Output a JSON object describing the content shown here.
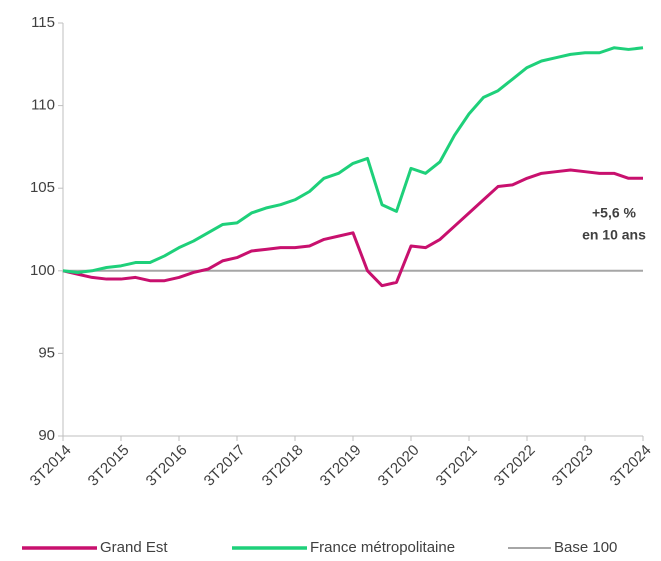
{
  "chart_data": {
    "type": "line",
    "categories": [
      "3T2014",
      null,
      null,
      null,
      "3T2015",
      null,
      null,
      null,
      "3T2016",
      null,
      null,
      null,
      "3T2017",
      null,
      null,
      null,
      "3T2018",
      null,
      null,
      null,
      "3T2019",
      null,
      null,
      null,
      "3T2020",
      null,
      null,
      null,
      "3T2021",
      null,
      null,
      null,
      "3T2022",
      null,
      null,
      null,
      "3T2023",
      null,
      null,
      null,
      "3T2024"
    ],
    "series": [
      {
        "name": "Grand Est",
        "color": "#c8106e",
        "values": [
          100.0,
          99.8,
          99.6,
          99.5,
          99.5,
          99.6,
          99.4,
          99.4,
          99.6,
          99.9,
          100.1,
          100.6,
          100.8,
          101.2,
          101.3,
          101.4,
          101.4,
          101.5,
          101.9,
          102.1,
          102.3,
          100.0,
          99.1,
          99.3,
          101.5,
          101.4,
          101.9,
          102.7,
          103.5,
          104.3,
          105.1,
          105.2,
          105.6,
          105.9,
          106.0,
          106.1,
          106.0,
          105.9,
          105.9,
          105.6,
          105.6
        ]
      },
      {
        "name": "France métropolitaine",
        "color": "#1ed07a",
        "values": [
          100.0,
          99.9,
          100.0,
          100.2,
          100.3,
          100.5,
          100.5,
          100.9,
          101.4,
          101.8,
          102.3,
          102.8,
          102.9,
          103.5,
          103.8,
          104.0,
          104.3,
          104.8,
          105.6,
          105.9,
          106.5,
          106.8,
          104.0,
          103.6,
          106.2,
          105.9,
          106.6,
          108.2,
          109.5,
          110.5,
          110.9,
          111.6,
          112.3,
          112.7,
          112.9,
          113.1,
          113.2,
          113.2,
          113.5,
          113.4,
          113.5
        ]
      },
      {
        "name": "Base 100",
        "color": "#a6a6a6",
        "values": [
          100,
          100,
          100,
          100,
          100,
          100,
          100,
          100,
          100,
          100,
          100,
          100,
          100,
          100,
          100,
          100,
          100,
          100,
          100,
          100,
          100,
          100,
          100,
          100,
          100,
          100,
          100,
          100,
          100,
          100,
          100,
          100,
          100,
          100,
          100,
          100,
          100,
          100,
          100,
          100,
          100
        ]
      }
    ],
    "annotation": [
      "+5,6 %",
      "en 10 ans"
    ],
    "ylim": [
      90,
      115
    ],
    "yticks": [
      90,
      95,
      100,
      105,
      110,
      115
    ],
    "legend": "bottom"
  }
}
